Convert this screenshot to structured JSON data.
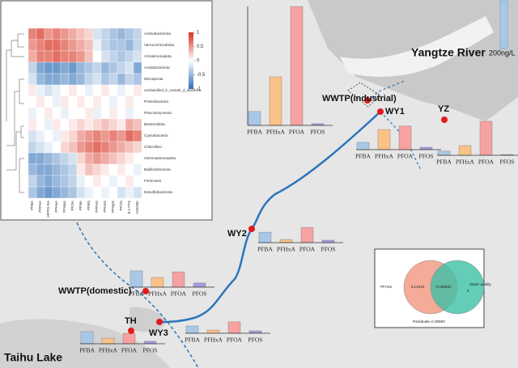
{
  "labels": {
    "river": "Yangtze River",
    "lake": "Taihu Lake"
  },
  "scale": {
    "value": 200,
    "label": "200ng/L"
  },
  "categories": [
    "PFBA",
    "PFHxA",
    "PFOA",
    "PFOS"
  ],
  "colors": [
    "#a9c8e8",
    "#fbc287",
    "#f6a2a2",
    "#a89be2"
  ],
  "sites": [
    {
      "label": "WWTP(industrial)",
      "values": [
        57,
        200,
        490,
        7
      ]
    },
    {
      "label": "WY1",
      "values": [
        30,
        83,
        97,
        10
      ]
    },
    {
      "label": "YZ",
      "values": [
        17,
        40,
        140,
        3
      ]
    },
    {
      "label": "WY2",
      "values": [
        43,
        13,
        63,
        10
      ]
    },
    {
      "label": "WWTP(domestic)",
      "values": [
        67,
        40,
        63,
        17
      ]
    },
    {
      "label": "TH",
      "values": [
        50,
        23,
        43,
        10
      ]
    },
    {
      "label": "WY3",
      "values": [
        30,
        13,
        47,
        10
      ]
    }
  ],
  "heatmap": {
    "rows": [
      "Actinobacteriota",
      "Verrucomicrobiota",
      "Armatimonadota",
      "Acidobacteriota",
      "Nitrospirota",
      "unclassified_k_norank_d_Bacteria",
      "Proteobacteria",
      "Planctomycetota",
      "Bacteroidota",
      "Cyanobacteria",
      "Chloroflexi",
      "Gemmatimonadota",
      "Bdellovibrionota",
      "Firmicutes",
      "Desulfobacterota"
    ],
    "columns": [
      "PFBA",
      "PFPeA",
      "HFPO-DA",
      "PFHxA",
      "PFHpA",
      "PFOA",
      "PFNA",
      "PFBS",
      "PFPeS",
      "PFHxS",
      "PFHpS",
      "PFOS",
      "6:2 FTS",
      "ADONA"
    ],
    "values": [
      [
        0.6,
        0.7,
        0.5,
        0.6,
        0.5,
        0.4,
        0.3,
        0.2,
        -0.2,
        -0.3,
        -0.4,
        -0.5,
        -0.4,
        -0.3
      ],
      [
        0.5,
        0.6,
        0.7,
        0.7,
        0.6,
        0.5,
        0.4,
        0.3,
        -0.1,
        -0.3,
        -0.4,
        -0.4,
        -0.5,
        -0.3
      ],
      [
        0.4,
        0.6,
        0.6,
        0.7,
        0.6,
        0.6,
        0.5,
        0.3,
        0,
        -0.2,
        -0.3,
        -0.4,
        -0.3,
        -0.2
      ],
      [
        -0.3,
        -0.6,
        -0.7,
        -0.7,
        -0.6,
        -0.7,
        -0.5,
        -0.4,
        -0.3,
        -0.5,
        -0.4,
        -0.3,
        -0.2,
        -0.6
      ],
      [
        -0.2,
        -0.5,
        -0.6,
        -0.6,
        -0.5,
        -0.6,
        -0.5,
        -0.3,
        -0.2,
        -0.4,
        -0.3,
        -0.5,
        -0.3,
        -0.4
      ],
      [
        0.1,
        -0.1,
        -0.2,
        -0.1,
        0,
        0.1,
        0,
        -0.1,
        0,
        0.1,
        0,
        -0.1,
        0,
        0.1
      ],
      [
        0,
        0.1,
        0,
        -0.1,
        0.1,
        0,
        0.1,
        0,
        0.1,
        0,
        -0.1,
        0,
        0.1,
        0
      ],
      [
        -0.1,
        0,
        0.1,
        0,
        -0.1,
        0,
        0,
        0.1,
        -0.1,
        0,
        0.1,
        0,
        -0.1,
        0
      ],
      [
        0.1,
        0,
        -0.1,
        0.1,
        0,
        0.1,
        0.2,
        0.1,
        0.2,
        0.3,
        0.2,
        0.1,
        0.4,
        0.3
      ],
      [
        -0.2,
        -0.1,
        0,
        -0.1,
        0.1,
        0.2,
        0.4,
        0.5,
        0.6,
        0.5,
        0.6,
        0.5,
        0.7,
        0.6
      ],
      [
        -0.3,
        -0.2,
        -0.1,
        0,
        0.2,
        0.3,
        0.5,
        0.6,
        0.7,
        0.6,
        0.5,
        0.4,
        0.3,
        0.2
      ],
      [
        -0.6,
        -0.6,
        -0.5,
        -0.4,
        -0.3,
        -0.2,
        0.2,
        0.4,
        0.5,
        0.4,
        0.3,
        0.2,
        0.1,
        0
      ],
      [
        -0.5,
        -0.6,
        -0.6,
        -0.5,
        -0.4,
        -0.3,
        0.1,
        0.3,
        0.2,
        0.1,
        0,
        0.1,
        0,
        -0.1
      ],
      [
        -0.3,
        -0.5,
        -0.6,
        -0.5,
        -0.4,
        -0.3,
        -0.1,
        0,
        0.1,
        0,
        -0.1,
        0,
        0.1,
        0
      ],
      [
        -0.4,
        -0.6,
        -0.7,
        -0.6,
        -0.5,
        -0.4,
        -0.2,
        -0.1,
        0,
        -0.1,
        0,
        -0.2,
        -0.1,
        -0.2
      ]
    ],
    "colorbar_ticks": [
      1,
      0.5,
      0,
      -0.5,
      -1
    ],
    "colorbar_colors": [
      "#2f6fb6",
      "#ffffff",
      "#d7301f"
    ]
  },
  "venn": {
    "left": "PFASs",
    "right": "Water quality",
    "left_only": "0.13413",
    "overlap": "0.038031",
    "right_only": "0",
    "residuals": "Residuals=0.30963"
  }
}
